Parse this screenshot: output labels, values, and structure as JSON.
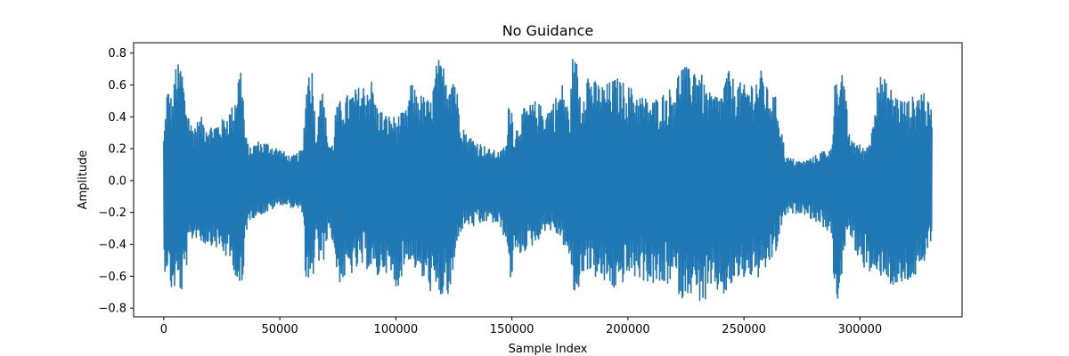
{
  "chart_data": {
    "type": "line",
    "title": "No Guidance",
    "xlabel": "Sample Index",
    "ylabel": "Amplitude",
    "xlim": [
      -13000,
      344000
    ],
    "ylim": [
      -0.855,
      0.865
    ],
    "x_ticks": [
      0,
      50000,
      100000,
      150000,
      200000,
      250000,
      300000
    ],
    "x_tick_labels": [
      "0",
      "50000",
      "100000",
      "150000",
      "200000",
      "250000",
      "300000"
    ],
    "y_ticks": [
      -0.8,
      -0.6,
      -0.4,
      -0.2,
      0.0,
      0.2,
      0.4,
      0.6,
      0.8
    ],
    "y_tick_labels": [
      "−0.8",
      "−0.6",
      "−0.4",
      "−0.2",
      "0.0",
      "0.2",
      "0.4",
      "0.6",
      "0.8"
    ],
    "grid": false,
    "series": [
      {
        "color": "#1f77b4",
        "sample_count": 331000,
        "envelope_x": [
          0,
          1500,
          4000,
          5000,
          8000,
          9000,
          12000,
          15000,
          16000,
          20000,
          25000,
          30000,
          31000,
          33000,
          34000,
          35000,
          37000,
          40000,
          45000,
          50000,
          55000,
          60000,
          61000,
          63000,
          64000,
          66000,
          67000,
          69000,
          71000,
          73000,
          74000,
          76000,
          80000,
          85000,
          90000,
          91000,
          95000,
          100000,
          105000,
          106000,
          110000,
          115000,
          118000,
          119000,
          121000,
          123000,
          125000,
          127000,
          130000,
          135000,
          140000,
          145000,
          148000,
          149000,
          151000,
          155000,
          160000,
          165000,
          170000,
          172000,
          175000,
          176000,
          178000,
          180000,
          182000,
          185000,
          190000,
          195000,
          200000,
          205000,
          210000,
          215000,
          220000,
          223000,
          226000,
          230000,
          233000,
          235000,
          240000,
          243000,
          245000,
          250000,
          255000,
          258000,
          260000,
          264000,
          266000,
          268000,
          275000,
          280000,
          285000,
          288000,
          289000,
          291000,
          293000,
          295000,
          298000,
          302000,
          305000,
          307000,
          310000,
          315000,
          320000,
          325000,
          327000,
          329000,
          331000
        ],
        "envelope_max": [
          0.28,
          0.6,
          0.5,
          0.74,
          0.72,
          0.55,
          0.35,
          0.38,
          0.4,
          0.35,
          0.38,
          0.48,
          0.57,
          0.75,
          0.62,
          0.3,
          0.2,
          0.25,
          0.24,
          0.2,
          0.15,
          0.2,
          0.55,
          0.78,
          0.7,
          0.25,
          0.7,
          0.5,
          0.25,
          0.23,
          0.45,
          0.5,
          0.55,
          0.6,
          0.64,
          0.5,
          0.42,
          0.4,
          0.45,
          0.62,
          0.55,
          0.5,
          0.78,
          0.74,
          0.72,
          0.68,
          0.72,
          0.5,
          0.3,
          0.25,
          0.2,
          0.18,
          0.25,
          0.63,
          0.3,
          0.45,
          0.5,
          0.45,
          0.55,
          0.62,
          0.4,
          0.78,
          0.75,
          0.5,
          0.72,
          0.63,
          0.6,
          0.65,
          0.6,
          0.55,
          0.5,
          0.55,
          0.6,
          0.75,
          0.7,
          0.76,
          0.6,
          0.55,
          0.55,
          0.7,
          0.65,
          0.6,
          0.65,
          0.7,
          0.58,
          0.52,
          0.35,
          0.15,
          0.12,
          0.15,
          0.2,
          0.2,
          0.78,
          0.5,
          0.76,
          0.3,
          0.25,
          0.2,
          0.3,
          0.68,
          0.65,
          0.55,
          0.5,
          0.55,
          0.6,
          0.5,
          0.45
        ],
        "envelope_min": [
          -0.58,
          -0.55,
          -0.76,
          -0.65,
          -0.72,
          -0.6,
          -0.38,
          -0.35,
          -0.4,
          -0.4,
          -0.45,
          -0.55,
          -0.6,
          -0.72,
          -0.77,
          -0.35,
          -0.25,
          -0.22,
          -0.2,
          -0.15,
          -0.17,
          -0.2,
          -0.6,
          -0.76,
          -0.68,
          -0.3,
          -0.58,
          -0.5,
          -0.3,
          -0.4,
          -0.55,
          -0.65,
          -0.6,
          -0.55,
          -0.56,
          -0.65,
          -0.55,
          -0.7,
          -0.5,
          -0.5,
          -0.6,
          -0.7,
          -0.74,
          -0.76,
          -0.7,
          -0.76,
          -0.58,
          -0.35,
          -0.28,
          -0.3,
          -0.25,
          -0.3,
          -0.4,
          -0.69,
          -0.5,
          -0.45,
          -0.4,
          -0.3,
          -0.35,
          -0.4,
          -0.5,
          -0.69,
          -0.76,
          -0.6,
          -0.55,
          -0.6,
          -0.65,
          -0.7,
          -0.6,
          -0.62,
          -0.65,
          -0.68,
          -0.62,
          -0.76,
          -0.7,
          -0.75,
          -0.78,
          -0.72,
          -0.7,
          -0.76,
          -0.65,
          -0.62,
          -0.6,
          -0.65,
          -0.55,
          -0.45,
          -0.3,
          -0.22,
          -0.2,
          -0.25,
          -0.3,
          -0.35,
          -0.74,
          -0.76,
          -0.5,
          -0.3,
          -0.45,
          -0.55,
          -0.6,
          -0.65,
          -0.58,
          -0.7,
          -0.65,
          -0.6,
          -0.6,
          -0.45,
          -0.35
        ]
      }
    ]
  }
}
